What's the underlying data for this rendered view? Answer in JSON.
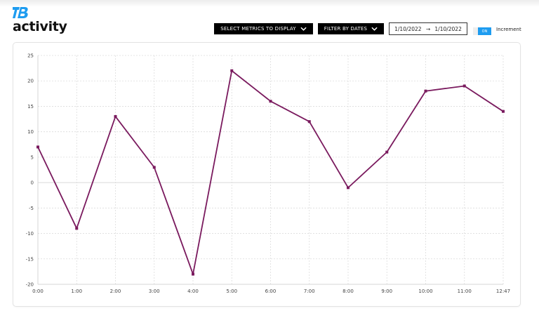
{
  "header": {
    "logo_text": "TB",
    "title": "activity"
  },
  "toolbar": {
    "metrics_label": "SELECT METRICS TO DISPLAY",
    "dates_label": "FILTER BY DATES",
    "date_from": "1/10/2022",
    "date_arrow": "→",
    "date_to": "1/10/2022",
    "toggle_state": "ON",
    "toggle_label": "Increment"
  },
  "colors": {
    "line": "#7a1a5e",
    "toggle": "#1e9cf0",
    "logo": "#1e9cf0"
  },
  "chart_data": {
    "type": "line",
    "title": "",
    "xlabel": "",
    "ylabel": "",
    "categories": [
      "0:00",
      "1:00",
      "2:00",
      "3:00",
      "4:00",
      "5:00",
      "6:00",
      "7:00",
      "8:00",
      "9:00",
      "10:00",
      "11:00",
      "12:47"
    ],
    "series": [
      {
        "name": "activity",
        "values": [
          7,
          -9,
          13,
          3,
          -18,
          22,
          16,
          12,
          -1,
          6,
          18,
          19,
          14
        ]
      }
    ],
    "ylim": [
      -20,
      25
    ],
    "yticks": [
      25,
      20,
      15,
      10,
      5,
      0,
      -5,
      -10,
      -15,
      -20
    ],
    "grid": true,
    "legend": "none"
  }
}
